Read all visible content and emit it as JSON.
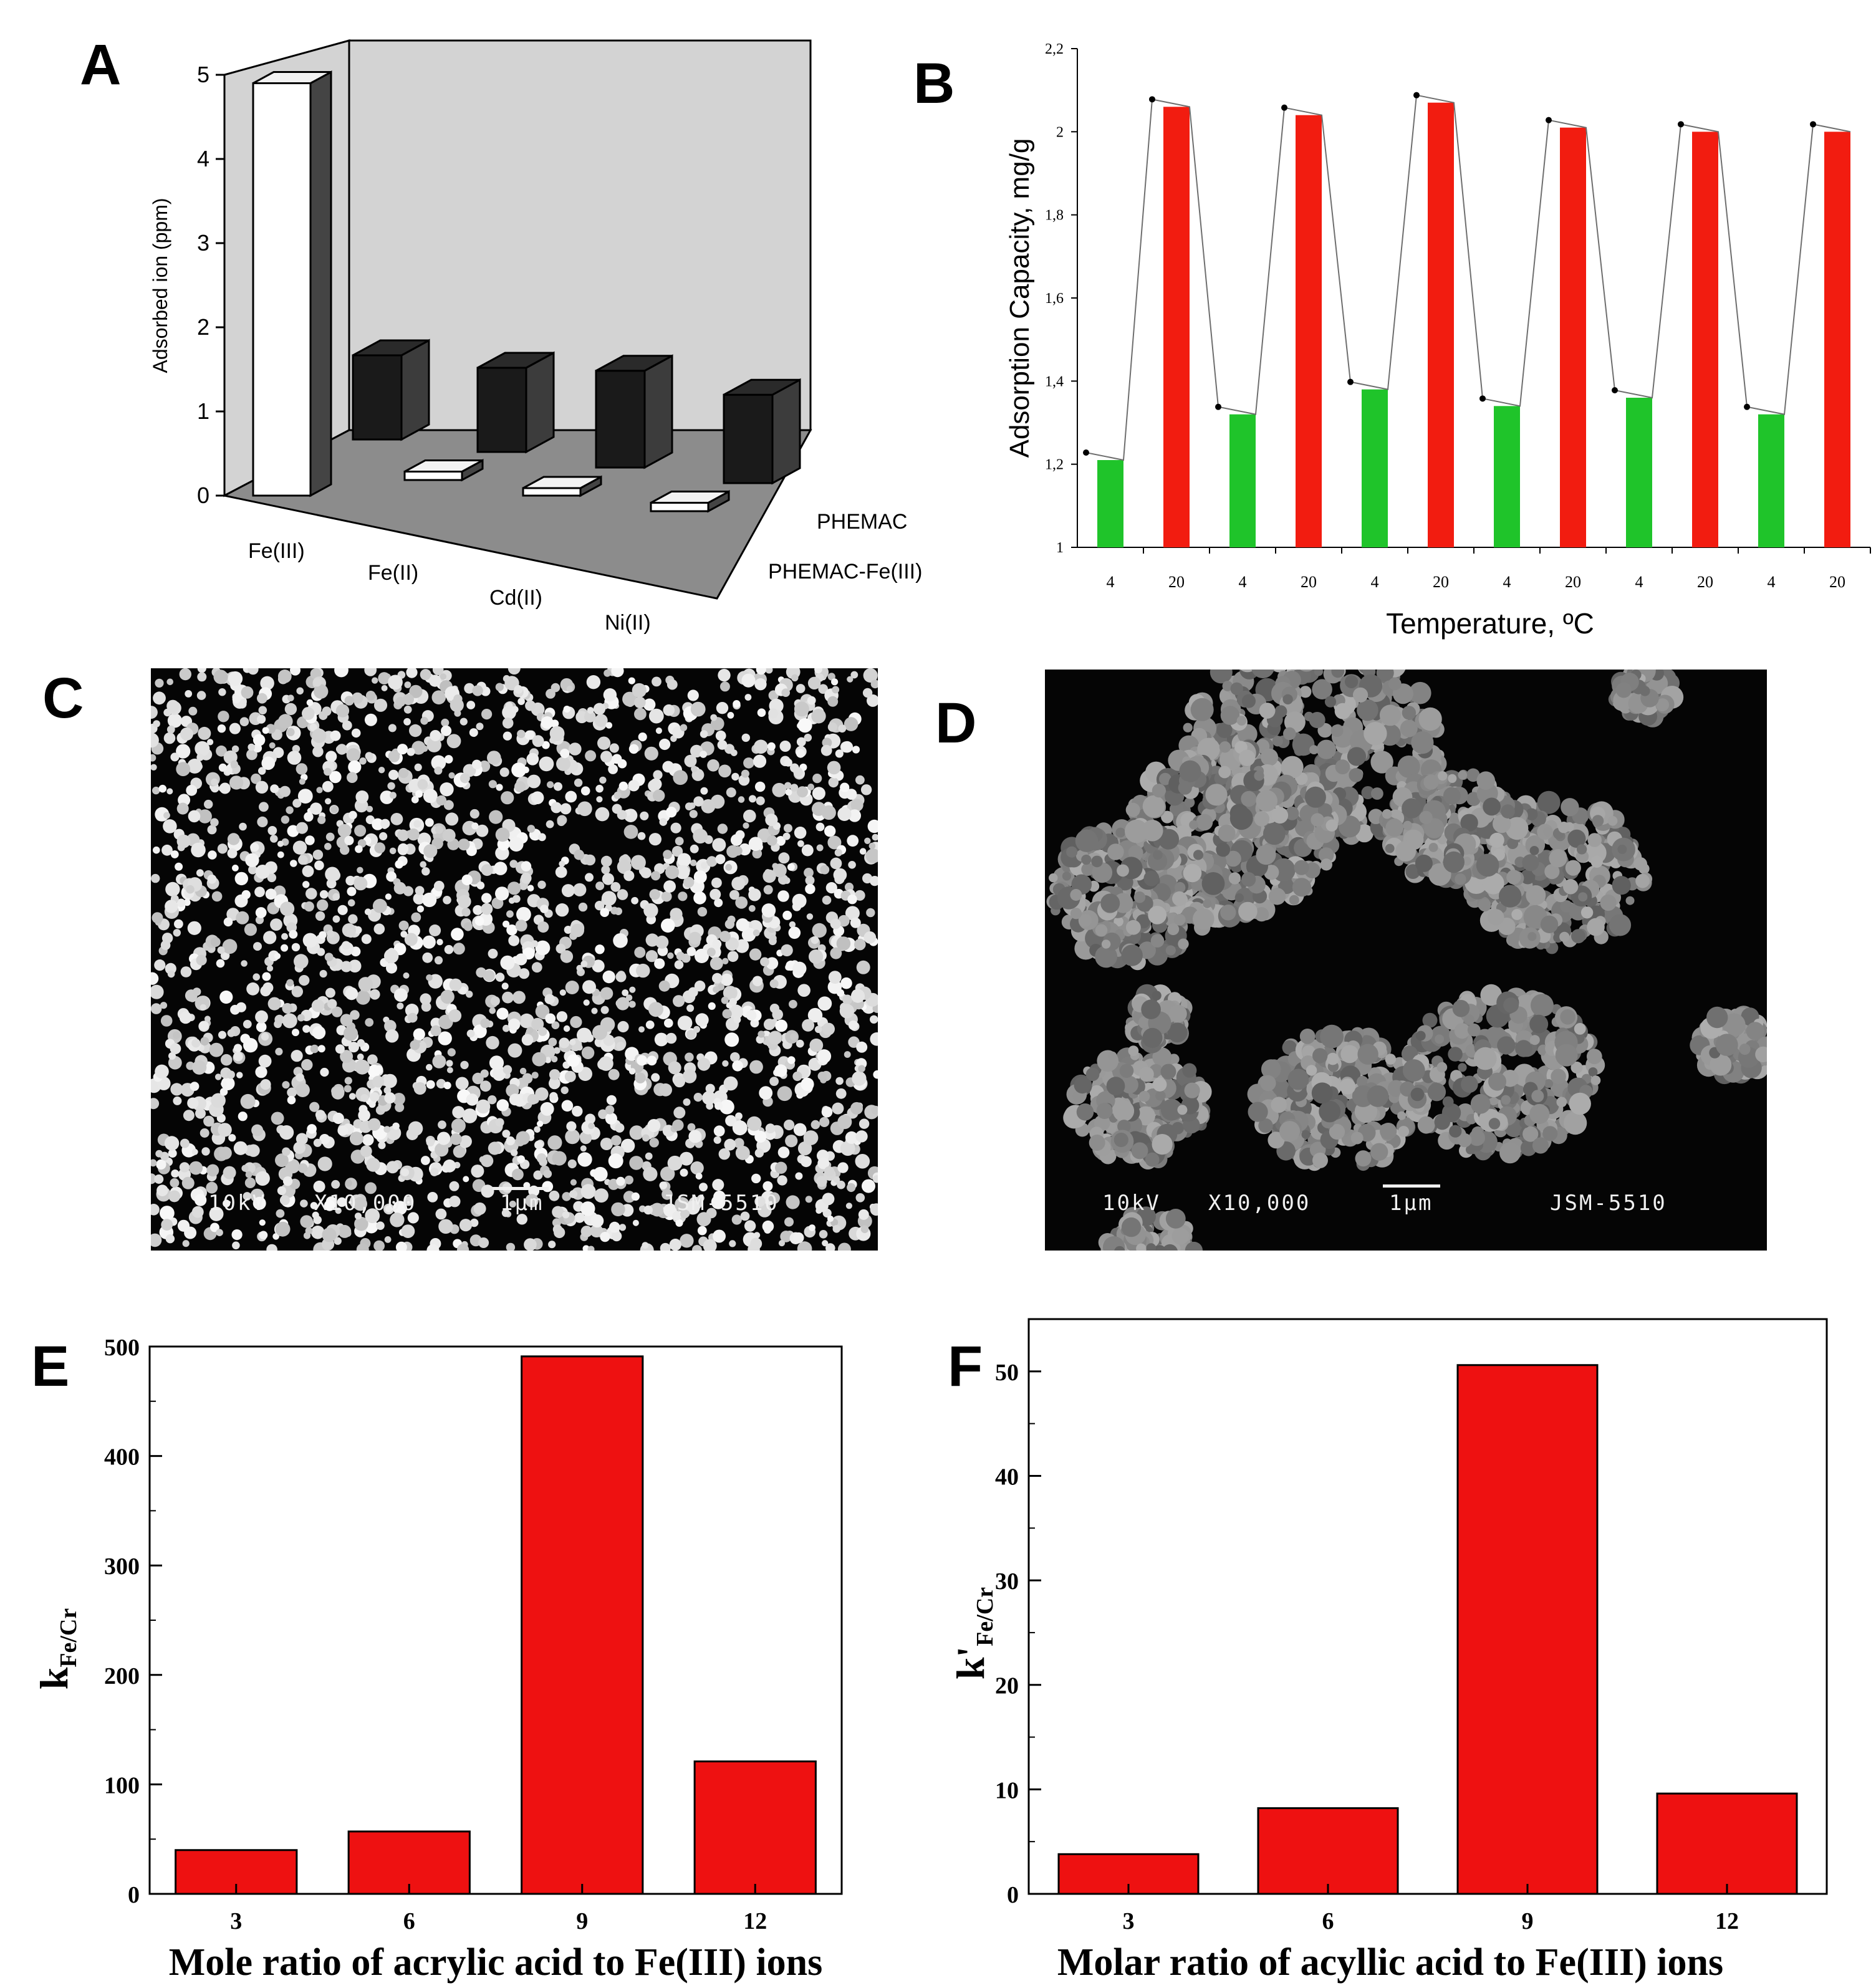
{
  "panels": {
    "A": {
      "label": "A"
    },
    "B": {
      "label": "B"
    },
    "C": {
      "label": "C",
      "caption": {
        "kv": "10kV",
        "mag": "X10,000",
        "scale": "1μm",
        "model": "JSM-5510"
      }
    },
    "D": {
      "label": "D",
      "caption": {
        "kv": "10kV",
        "mag": "X10,000",
        "scale": "1μm",
        "model": "JSM-5510"
      }
    },
    "E": {
      "label": "E"
    },
    "F": {
      "label": "F"
    }
  },
  "chart_data": [
    {
      "id": "A",
      "type": "bar",
      "projection": "3d",
      "categories": [
        "Fe(III)",
        "Fe(II)",
        "Cd(II)",
        "Ni(II)"
      ],
      "series": [
        {
          "name": "PHEMAC-Fe(III)",
          "values": [
            4.9,
            0.1,
            0.08,
            0.1
          ],
          "color": "#ffffff"
        },
        {
          "name": "PHEMAC",
          "values": [
            1.0,
            1.0,
            1.15,
            1.05
          ],
          "color": "#1a1a1a"
        }
      ],
      "ylabel": "Adsorbed ion (ppm)",
      "ylim": [
        0,
        5
      ],
      "yticks": [
        "0",
        "1",
        "2",
        "3",
        "4",
        "5"
      ],
      "wall_color": "#d3d3d3",
      "floor_color": "#8c8c8c"
    },
    {
      "id": "B",
      "type": "bar",
      "categories": [
        "4",
        "20",
        "4",
        "20",
        "4",
        "20",
        "4",
        "20",
        "4",
        "20",
        "4",
        "20"
      ],
      "values": [
        1.21,
        2.06,
        1.32,
        2.04,
        1.38,
        2.07,
        1.34,
        2.01,
        1.36,
        2.0,
        1.32,
        2.0
      ],
      "colors": {
        "4": "#1fc42a",
        "20": "#f21c10"
      },
      "xlabel": "Temperature, ºC",
      "ylabel": "Adsorption Capacity, mg/g",
      "ylim": [
        1,
        2.2
      ],
      "yticks": [
        "1",
        "1,2",
        "1,4",
        "1,6",
        "1,8",
        "2",
        "2,2"
      ],
      "connector_line": true
    },
    {
      "id": "E",
      "type": "bar",
      "categories": [
        "3",
        "6",
        "9",
        "12"
      ],
      "values": [
        40,
        57,
        491,
        121
      ],
      "xlabel": "Mole ratio of acrylic acid to Fe(III) ions",
      "ylabel_main": "k",
      "ylabel_sub": "Fe/Cr",
      "ylim": [
        0,
        500
      ],
      "yticks": [
        "0",
        "100",
        "200",
        "300",
        "400",
        "500"
      ],
      "bar_color": "#ee1111"
    },
    {
      "id": "F",
      "type": "bar",
      "categories": [
        "3",
        "6",
        "9",
        "12"
      ],
      "values": [
        3.8,
        8.2,
        50.6,
        9.6
      ],
      "xlabel": "Molar ratio of acyllic acid to Fe(III) ions",
      "ylabel_main": "k'",
      "ylabel_sub": "Fe/Cr",
      "ylim": [
        0,
        55
      ],
      "yticks": [
        "0",
        "10",
        "20",
        "30",
        "40",
        "50"
      ],
      "bar_color": "#ee1111"
    }
  ]
}
